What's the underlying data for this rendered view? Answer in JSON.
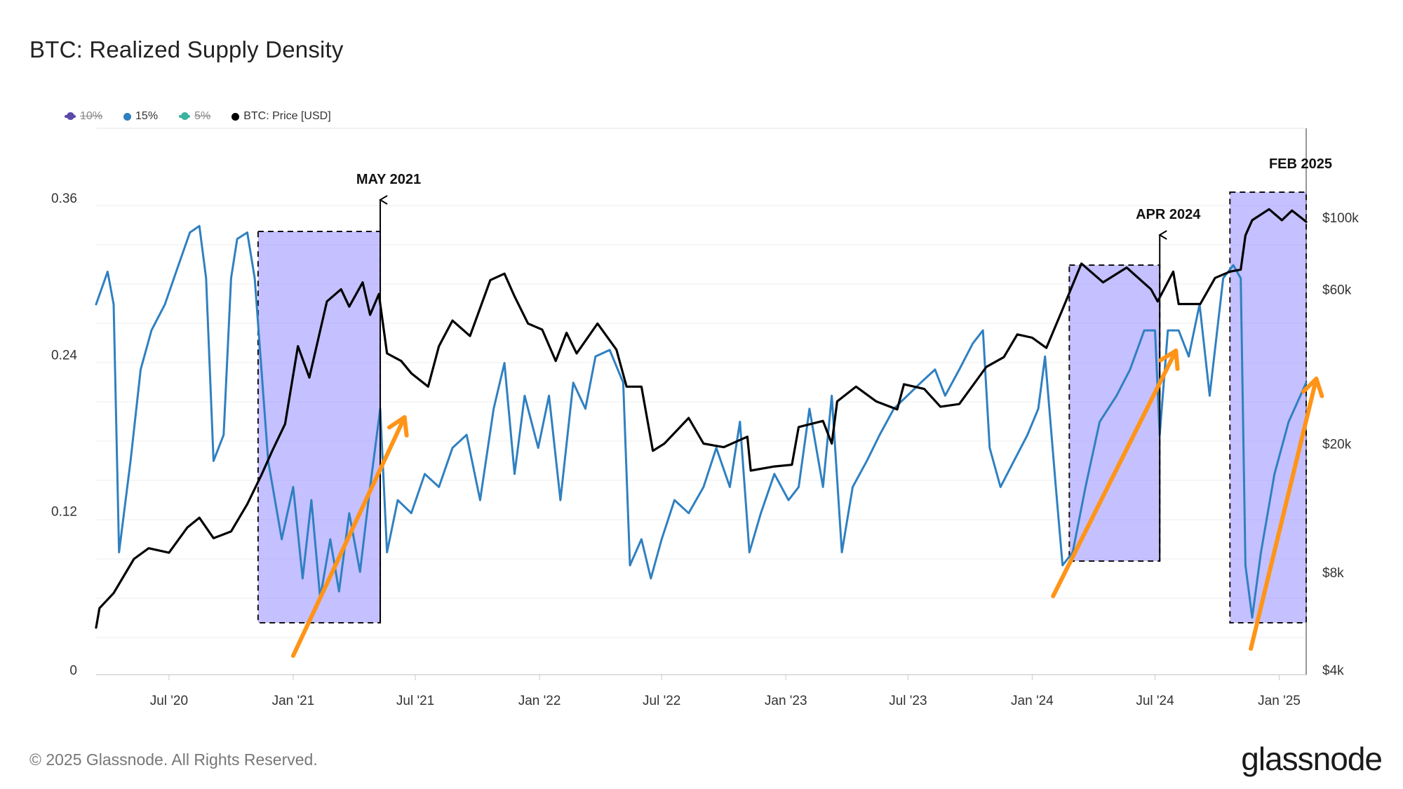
{
  "title": "BTC: Realized Supply Density",
  "legend": [
    {
      "label": "10%",
      "color": "#5b4aa8",
      "active": false
    },
    {
      "label": "15%",
      "color": "#2f80c1",
      "active": true
    },
    {
      "label": "5%",
      "color": "#3bb3a0",
      "active": false
    },
    {
      "label": "BTC: Price [USD]",
      "color": "#000000",
      "active": true
    }
  ],
  "footer": "© 2025 Glassnode. All Rights Reserved.",
  "logo": "glassnode",
  "chart_data": {
    "type": "line",
    "x_range": [
      "2020-03-15",
      "2025-02-10"
    ],
    "x_ticks": [
      "Jul '20",
      "Jan '21",
      "Jul '21",
      "Jan '22",
      "Jul '22",
      "Jan '23",
      "Jul '23",
      "Jan '24",
      "Jul '24",
      "Jan '25"
    ],
    "y_left": {
      "ticks": [
        "0",
        "0.12",
        "0.24",
        "0.36"
      ],
      "range": [
        0,
        0.36
      ]
    },
    "y_right": {
      "scale": "log",
      "ticks": [
        "$4k",
        "$8k",
        "$20k",
        "$60k",
        "$100k"
      ],
      "tick_values": [
        4000,
        8000,
        20000,
        60000,
        100000
      ]
    },
    "grid": true,
    "legend_position": "top-left",
    "series": [
      {
        "name": "15%",
        "axis": "left",
        "color": "#2f80c1",
        "points": [
          [
            "2020-03-15",
            0.28
          ],
          [
            "2020-04-01",
            0.305
          ],
          [
            "2020-04-10",
            0.28
          ],
          [
            "2020-04-18",
            0.09
          ],
          [
            "2020-05-05",
            0.16
          ],
          [
            "2020-05-20",
            0.23
          ],
          [
            "2020-06-05",
            0.26
          ],
          [
            "2020-06-25",
            0.28
          ],
          [
            "2020-07-15",
            0.31
          ],
          [
            "2020-08-01",
            0.335
          ],
          [
            "2020-08-15",
            0.34
          ],
          [
            "2020-08-25",
            0.3
          ],
          [
            "2020-09-05",
            0.16
          ],
          [
            "2020-09-20",
            0.18
          ],
          [
            "2020-10-01",
            0.3
          ],
          [
            "2020-10-10",
            0.33
          ],
          [
            "2020-10-25",
            0.335
          ],
          [
            "2020-11-05",
            0.3
          ],
          [
            "2020-11-25",
            0.16
          ],
          [
            "2020-12-15",
            0.1
          ],
          [
            "2021-01-01",
            0.14
          ],
          [
            "2021-01-15",
            0.07
          ],
          [
            "2021-01-28",
            0.13
          ],
          [
            "2021-02-10",
            0.055
          ],
          [
            "2021-02-25",
            0.1
          ],
          [
            "2021-03-10",
            0.06
          ],
          [
            "2021-03-25",
            0.12
          ],
          [
            "2021-04-10",
            0.075
          ],
          [
            "2021-04-25",
            0.14
          ],
          [
            "2021-05-10",
            0.2
          ],
          [
            "2021-05-20",
            0.09
          ],
          [
            "2021-06-05",
            0.13
          ],
          [
            "2021-06-25",
            0.12
          ],
          [
            "2021-07-15",
            0.15
          ],
          [
            "2021-08-05",
            0.14
          ],
          [
            "2021-08-25",
            0.17
          ],
          [
            "2021-09-15",
            0.18
          ],
          [
            "2021-10-05",
            0.13
          ],
          [
            "2021-10-25",
            0.2
          ],
          [
            "2021-11-10",
            0.235
          ],
          [
            "2021-11-25",
            0.15
          ],
          [
            "2021-12-10",
            0.21
          ],
          [
            "2021-12-30",
            0.17
          ],
          [
            "2022-01-15",
            0.21
          ],
          [
            "2022-02-01",
            0.13
          ],
          [
            "2022-02-20",
            0.22
          ],
          [
            "2022-03-10",
            0.2
          ],
          [
            "2022-03-25",
            0.24
          ],
          [
            "2022-04-15",
            0.245
          ],
          [
            "2022-05-05",
            0.22
          ],
          [
            "2022-05-15",
            0.08
          ],
          [
            "2022-06-01",
            0.1
          ],
          [
            "2022-06-15",
            0.07
          ],
          [
            "2022-07-01",
            0.1
          ],
          [
            "2022-07-20",
            0.13
          ],
          [
            "2022-08-10",
            0.12
          ],
          [
            "2022-09-01",
            0.14
          ],
          [
            "2022-09-20",
            0.17
          ],
          [
            "2022-10-10",
            0.14
          ],
          [
            "2022-10-25",
            0.19
          ],
          [
            "2022-11-08",
            0.09
          ],
          [
            "2022-11-25",
            0.12
          ],
          [
            "2022-12-15",
            0.15
          ],
          [
            "2023-01-05",
            0.13
          ],
          [
            "2023-01-20",
            0.14
          ],
          [
            "2023-02-05",
            0.2
          ],
          [
            "2023-02-25",
            0.14
          ],
          [
            "2023-03-10",
            0.21
          ],
          [
            "2023-03-25",
            0.09
          ],
          [
            "2023-04-10",
            0.14
          ],
          [
            "2023-05-01",
            0.16
          ],
          [
            "2023-05-20",
            0.18
          ],
          [
            "2023-06-10",
            0.2
          ],
          [
            "2023-06-30",
            0.21
          ],
          [
            "2023-07-20",
            0.22
          ],
          [
            "2023-08-10",
            0.23
          ],
          [
            "2023-08-25",
            0.21
          ],
          [
            "2023-09-15",
            0.23
          ],
          [
            "2023-10-05",
            0.25
          ],
          [
            "2023-10-20",
            0.26
          ],
          [
            "2023-10-30",
            0.17
          ],
          [
            "2023-11-15",
            0.14
          ],
          [
            "2023-12-05",
            0.16
          ],
          [
            "2023-12-25",
            0.18
          ],
          [
            "2024-01-10",
            0.2
          ],
          [
            "2024-01-20",
            0.24
          ],
          [
            "2024-02-05",
            0.14
          ],
          [
            "2024-02-15",
            0.08
          ],
          [
            "2024-03-01",
            0.09
          ],
          [
            "2024-03-20",
            0.14
          ],
          [
            "2024-04-10",
            0.19
          ],
          [
            "2024-05-05",
            0.21
          ],
          [
            "2024-05-25",
            0.23
          ],
          [
            "2024-06-15",
            0.26
          ],
          [
            "2024-07-01",
            0.26
          ],
          [
            "2024-07-08",
            0.18
          ],
          [
            "2024-07-20",
            0.26
          ],
          [
            "2024-08-05",
            0.26
          ],
          [
            "2024-08-20",
            0.24
          ],
          [
            "2024-09-05",
            0.28
          ],
          [
            "2024-09-20",
            0.21
          ],
          [
            "2024-10-10",
            0.3
          ],
          [
            "2024-10-25",
            0.31
          ],
          [
            "2024-11-05",
            0.3
          ],
          [
            "2024-11-12",
            0.08
          ],
          [
            "2024-11-22",
            0.04
          ],
          [
            "2024-12-05",
            0.09
          ],
          [
            "2024-12-25",
            0.15
          ],
          [
            "2025-01-15",
            0.19
          ],
          [
            "2025-02-10",
            0.22
          ]
        ]
      },
      {
        "name": "BTC: Price [USD]",
        "axis": "right",
        "color": "#000000",
        "points": [
          [
            "2020-03-15",
            5400
          ],
          [
            "2020-03-20",
            6200
          ],
          [
            "2020-04-10",
            6900
          ],
          [
            "2020-05-10",
            8800
          ],
          [
            "2020-06-01",
            9500
          ],
          [
            "2020-07-01",
            9200
          ],
          [
            "2020-07-28",
            11000
          ],
          [
            "2020-08-15",
            11800
          ],
          [
            "2020-09-05",
            10200
          ],
          [
            "2020-10-01",
            10700
          ],
          [
            "2020-10-25",
            13000
          ],
          [
            "2020-11-15",
            16000
          ],
          [
            "2020-12-01",
            19000
          ],
          [
            "2020-12-20",
            23000
          ],
          [
            "2021-01-08",
            40000
          ],
          [
            "2021-01-25",
            32000
          ],
          [
            "2021-02-20",
            55000
          ],
          [
            "2021-03-13",
            60000
          ],
          [
            "2021-03-25",
            53000
          ],
          [
            "2021-04-14",
            63000
          ],
          [
            "2021-04-25",
            50000
          ],
          [
            "2021-05-08",
            58000
          ],
          [
            "2021-05-20",
            38000
          ],
          [
            "2021-06-10",
            36000
          ],
          [
            "2021-06-25",
            33000
          ],
          [
            "2021-07-20",
            30000
          ],
          [
            "2021-08-05",
            40000
          ],
          [
            "2021-08-25",
            48000
          ],
          [
            "2021-09-20",
            43000
          ],
          [
            "2021-10-20",
            64000
          ],
          [
            "2021-11-10",
            67000
          ],
          [
            "2021-11-25",
            57000
          ],
          [
            "2021-12-15",
            47000
          ],
          [
            "2022-01-05",
            45000
          ],
          [
            "2022-01-25",
            36000
          ],
          [
            "2022-02-10",
            44000
          ],
          [
            "2022-02-25",
            38000
          ],
          [
            "2022-03-28",
            47000
          ],
          [
            "2022-04-25",
            39000
          ],
          [
            "2022-05-10",
            30000
          ],
          [
            "2022-06-01",
            30000
          ],
          [
            "2022-06-18",
            19000
          ],
          [
            "2022-07-05",
            20000
          ],
          [
            "2022-08-10",
            24000
          ],
          [
            "2022-09-01",
            20000
          ],
          [
            "2022-10-01",
            19500
          ],
          [
            "2022-11-05",
            21000
          ],
          [
            "2022-11-10",
            16500
          ],
          [
            "2022-12-15",
            17000
          ],
          [
            "2023-01-10",
            17200
          ],
          [
            "2023-01-20",
            22500
          ],
          [
            "2023-02-25",
            23500
          ],
          [
            "2023-03-10",
            20000
          ],
          [
            "2023-03-18",
            27000
          ],
          [
            "2023-04-15",
            30000
          ],
          [
            "2023-05-15",
            27000
          ],
          [
            "2023-06-15",
            25500
          ],
          [
            "2023-06-25",
            30500
          ],
          [
            "2023-07-25",
            29500
          ],
          [
            "2023-08-18",
            26000
          ],
          [
            "2023-09-15",
            26500
          ],
          [
            "2023-10-25",
            34500
          ],
          [
            "2023-11-20",
            37000
          ],
          [
            "2023-12-10",
            43500
          ],
          [
            "2024-01-01",
            42500
          ],
          [
            "2024-01-22",
            39500
          ],
          [
            "2024-02-15",
            52000
          ],
          [
            "2024-03-14",
            72000
          ],
          [
            "2024-04-15",
            63000
          ],
          [
            "2024-05-20",
            70000
          ],
          [
            "2024-06-25",
            60000
          ],
          [
            "2024-07-05",
            55000
          ],
          [
            "2024-07-28",
            68000
          ],
          [
            "2024-08-05",
            54000
          ],
          [
            "2024-09-06",
            54000
          ],
          [
            "2024-09-28",
            65000
          ],
          [
            "2024-10-20",
            68000
          ],
          [
            "2024-11-05",
            69000
          ],
          [
            "2024-11-12",
            88000
          ],
          [
            "2024-11-22",
            98000
          ],
          [
            "2024-12-17",
            106000
          ],
          [
            "2025-01-05",
            98000
          ],
          [
            "2025-01-20",
            105000
          ],
          [
            "2025-02-10",
            97000
          ]
        ]
      }
    ],
    "annotations": [
      {
        "label": "MAY 2021",
        "date": "2021-05-10",
        "box": {
          "from": "2020-11-10",
          "to": "2021-05-10"
        }
      },
      {
        "label": "APR 2024",
        "date": "2024-07-08",
        "box": {
          "from": "2024-02-25",
          "to": "2024-07-08"
        }
      },
      {
        "label": "FEB 2025",
        "date": "2025-02-10",
        "box": {
          "from": "2024-10-20",
          "to": "2025-02-10"
        }
      }
    ]
  }
}
